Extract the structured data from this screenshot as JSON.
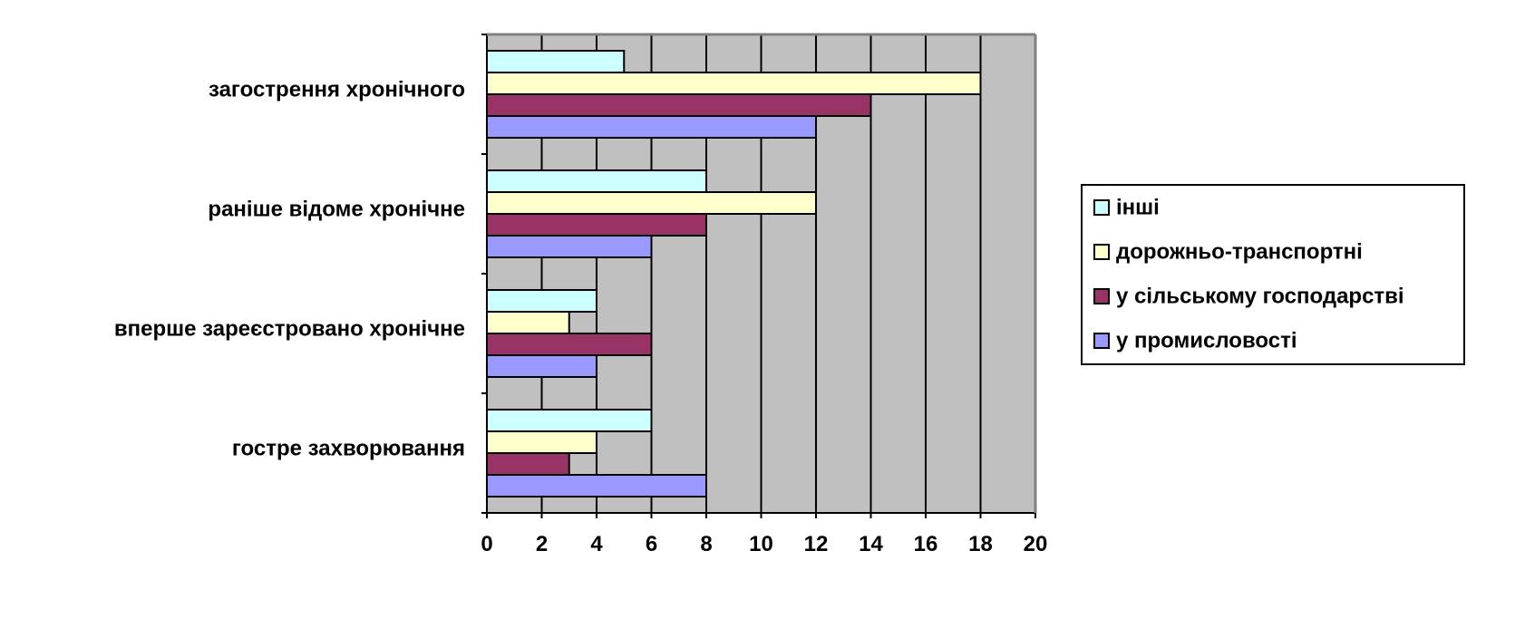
{
  "chart_data": {
    "type": "bar",
    "orientation": "horizontal",
    "categories": [
      "гостре захворювання",
      "вперше зареєстровано хронічне",
      "раніше відоме хронічне",
      "загострення хронічного"
    ],
    "series": [
      {
        "name": "у промисловості",
        "color": "#9999ff",
        "values": [
          8,
          4,
          6,
          12
        ]
      },
      {
        "name": "у сільському господарстві",
        "color": "#993366",
        "values": [
          3,
          6,
          8,
          14
        ]
      },
      {
        "name": "дорожньо-транспортні",
        "color": "#ffffcc",
        "values": [
          4,
          3,
          12,
          18
        ]
      },
      {
        "name": "інші",
        "color": "#ccffff",
        "values": [
          6,
          4,
          8,
          5
        ]
      }
    ],
    "xlim": [
      0,
      20
    ],
    "xticks": [
      "0",
      "2",
      "4",
      "6",
      "8",
      "10",
      "12",
      "14",
      "16",
      "18",
      "20"
    ],
    "plot_background": "#c0c0c0",
    "grid": true,
    "legend_position": "right",
    "legend_order": [
      "інші",
      "дорожньо-транспортні",
      "у сільському господарстві",
      "у промисловості"
    ]
  }
}
